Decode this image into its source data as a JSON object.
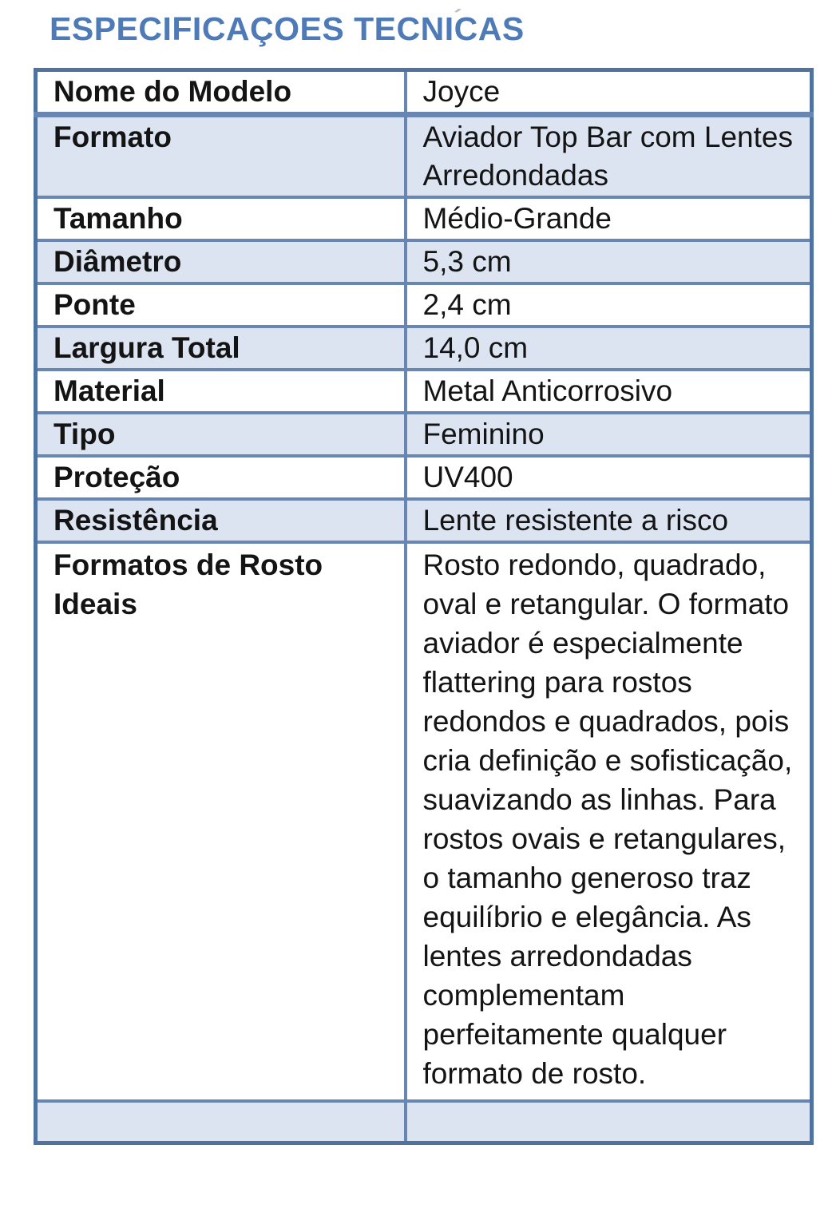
{
  "page": {
    "background": "#ffffff",
    "title_color": "#4e7bb7",
    "border_color": "#6787b2",
    "alt_row_fill": "#dce4f1"
  },
  "header": {
    "title": "ESPECIFICAÇOES TECNICAS",
    "faint_accent_mark": "´"
  },
  "spec_table": {
    "rows": [
      {
        "label": "Nome do Modelo",
        "value": "Joyce"
      },
      {
        "label": "Formato",
        "value": "Aviador Top Bar com Lentes Arredondadas"
      },
      {
        "label": "Tamanho",
        "value": "Médio-Grande"
      },
      {
        "label": "Diâmetro",
        "value": "5,3 cm"
      },
      {
        "label": "Ponte",
        "value": "2,4 cm"
      },
      {
        "label": "Largura Total",
        "value": "14,0 cm"
      },
      {
        "label": "Material",
        "value": "Metal Anticorrosivo"
      },
      {
        "label": "Tipo",
        "value": "Feminino"
      },
      {
        "label": "Proteção",
        "value": "UV400"
      },
      {
        "label": "Resistência",
        "value": "Lente resistente a risco"
      },
      {
        "label": "Formatos de Rosto Ideais",
        "value": "Rosto redondo, quadrado, oval e retangular. O formato aviador é especialmente flattering para rostos redondos e quadrados, pois cria definição e sofisticação, suavizando as linhas. Para rostos ovais e retangulares, o tamanho generoso traz equilíbrio e elegância. As lentes arredondadas complementam perfeitamente qualquer formato de rosto."
      },
      {
        "label": "",
        "value": ""
      }
    ]
  }
}
